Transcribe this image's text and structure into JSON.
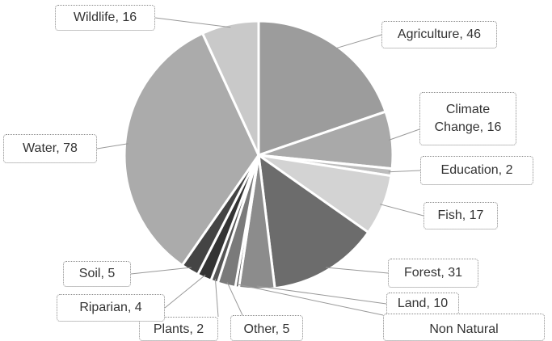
{
  "chart_data": {
    "type": "pie",
    "labels": [
      "Agriculture, 46",
      "Climate Change, 16",
      "Education, 2",
      "Fish, 17",
      "Forest, 31",
      "Land, 10",
      "Non Natural",
      "Other, 5",
      "Plants, 2",
      "Riparian, 4",
      "Soil, 5",
      "Water, 78",
      "Wildlife, 16"
    ],
    "values": [
      46,
      16,
      2,
      17,
      31,
      10,
      1,
      5,
      2,
      4,
      5,
      78,
      16
    ],
    "colors": [
      "#9c9c9c",
      "#a9a9a9",
      "#bdbdbd",
      "#d3d3d3",
      "#6c6c6c",
      "#8c8c8c",
      "#4a4a4a",
      "#7a7a7a",
      "#555555",
      "#333333",
      "#444444",
      "#ababab",
      "#c9c9c9"
    ]
  }
}
